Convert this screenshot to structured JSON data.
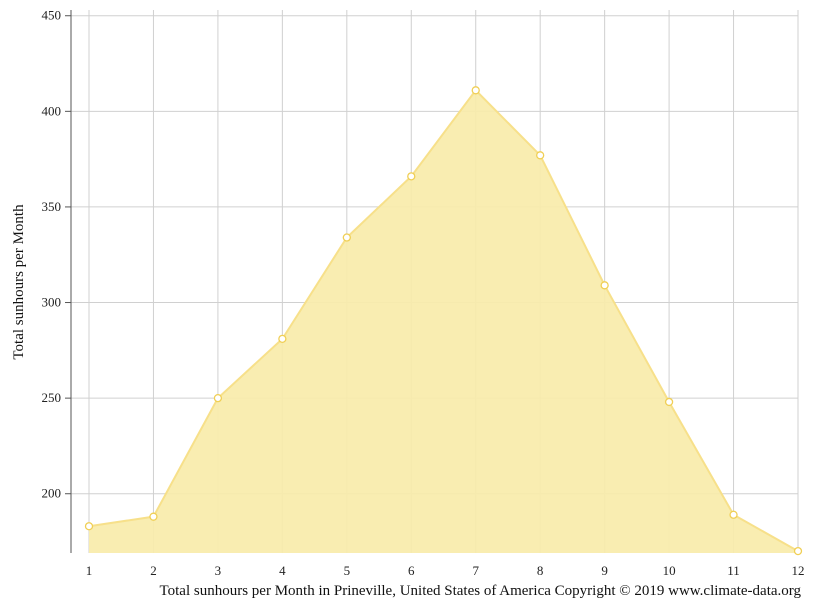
{
  "chart_data": {
    "type": "area",
    "title": "",
    "xlabel": "",
    "ylabel": "Total sunhours per Month",
    "x": [
      1,
      2,
      3,
      4,
      5,
      6,
      7,
      8,
      9,
      10,
      11,
      12
    ],
    "values": [
      183,
      188,
      250,
      281,
      334,
      366,
      411,
      377,
      309,
      248,
      189,
      170
    ],
    "xlim": [
      1,
      12
    ],
    "ylim": [
      169,
      453
    ],
    "yticks": [
      200,
      250,
      300,
      350,
      400,
      450
    ],
    "grid": true,
    "legend": "none",
    "fill_color": "#f9ecaa",
    "line_color": "#f7e08a",
    "marker_fill": "#ffffff",
    "marker_stroke": "#f0cf55",
    "caption": "Total sunhours per Month in Prineville, United States of America Copyright © 2019 www.climate-data.org"
  }
}
